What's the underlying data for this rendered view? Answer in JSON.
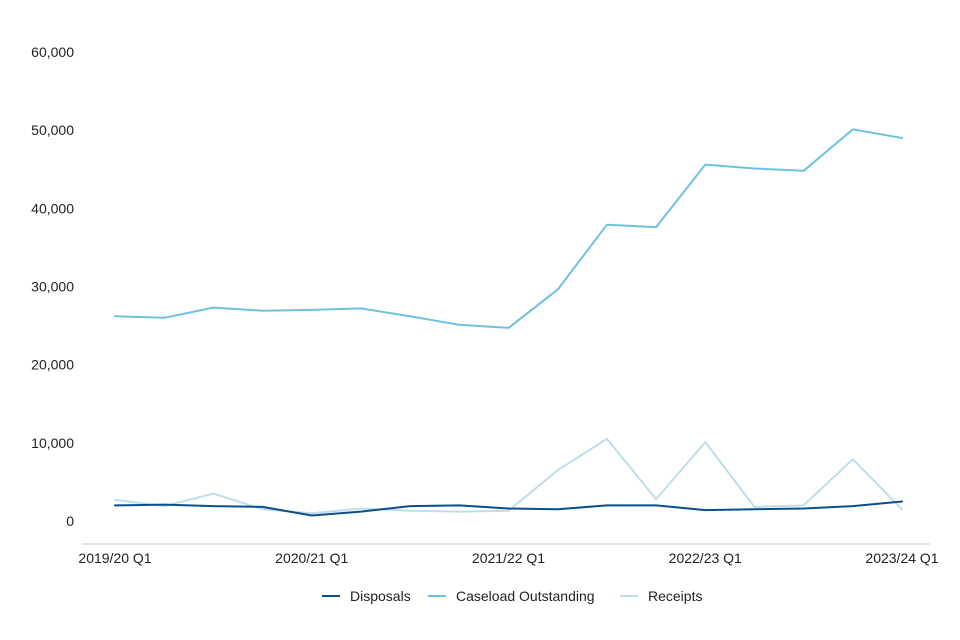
{
  "chart_data": {
    "type": "line",
    "title": "",
    "xlabel": "",
    "ylabel": "",
    "x": [
      "2019/20 Q1",
      "2019/20 Q2",
      "2019/20 Q3",
      "2019/20 Q4",
      "2020/21 Q1",
      "2020/21 Q2",
      "2020/21 Q3",
      "2020/21 Q4",
      "2021/22 Q1",
      "2021/22 Q2",
      "2021/22 Q3",
      "2021/22 Q4",
      "2022/23 Q1",
      "2022/23 Q2",
      "2022/23 Q3",
      "2022/23 Q4",
      "2023/24 Q1"
    ],
    "x_tick_labels": [
      "2019/20 Q1",
      "2020/21 Q1",
      "2021/22 Q1",
      "2022/23 Q1",
      "2023/24 Q1"
    ],
    "y_ticks": [
      0,
      10000,
      20000,
      30000,
      40000,
      50000,
      60000
    ],
    "y_tick_labels": [
      "0",
      "10,000",
      "20,000",
      "30,000",
      "40,000",
      "50,000",
      "60,000"
    ],
    "ylim": [
      0,
      60000
    ],
    "grid": false,
    "legend_position": "bottom",
    "series": [
      {
        "name": "Disposals",
        "color": "#0b4f8a",
        "values": [
          2000,
          2100,
          1900,
          1800,
          700,
          1200,
          1900,
          2000,
          1600,
          1500,
          2000,
          2000,
          1400,
          1500,
          1600,
          1900,
          2500
        ]
      },
      {
        "name": "Caseload Outstanding",
        "color": "#6fc1e0",
        "values": [
          26200,
          26000,
          27300,
          26900,
          27000,
          27200,
          26200,
          25100,
          24700,
          29600,
          37900,
          37600,
          45600,
          45100,
          44800,
          50100,
          49000
        ]
      },
      {
        "name": "Receipts",
        "color": "#bfdeea",
        "values": [
          2700,
          1900,
          3500,
          1500,
          1000,
          1600,
          1300,
          1200,
          1300,
          6500,
          10500,
          2800,
          10100,
          1800,
          2000,
          7900,
          1500
        ]
      }
    ]
  }
}
